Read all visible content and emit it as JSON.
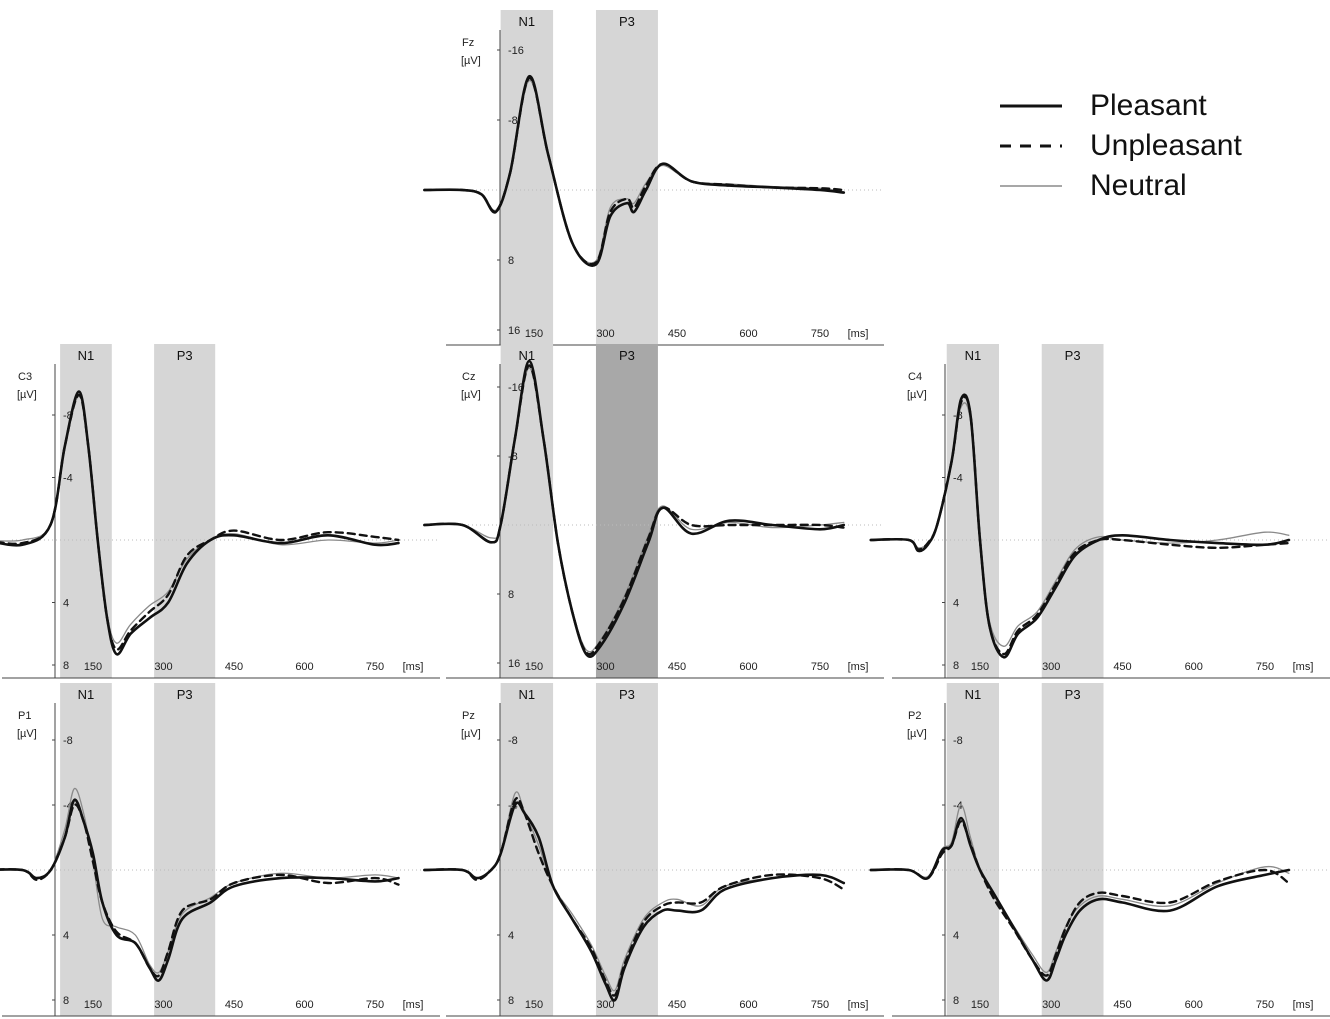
{
  "legend": {
    "items": [
      {
        "label": "Pleasant",
        "style": "solid-thick"
      },
      {
        "label": "Unpleasant",
        "style": "dashed"
      },
      {
        "label": "Neutral",
        "style": "solid-thin"
      }
    ]
  },
  "colors": {
    "pleasant": "#111111",
    "unpleasant": "#111111",
    "neutral": "#8a8a8a",
    "window": "#d6d6d6",
    "window_dark": "#a8a8a8",
    "axis": "#444444"
  },
  "chart_data": [
    {
      "type": "line",
      "electrode": "Fz",
      "unit": "[µV]",
      "x_unit": "[ms]",
      "x_ticks": [
        150,
        300,
        450,
        600,
        750
      ],
      "y_ticks": [
        -16,
        -8,
        8,
        16
      ],
      "y_inverted": true,
      "windows": [
        "N1",
        "P3"
      ],
      "p3_dark": false,
      "series": [
        {
          "name": "Pleasant",
          "x": [
            -80,
            0,
            40,
            70,
            100,
            140,
            180,
            230,
            280,
            310,
            345,
            360,
            385,
            420,
            480,
            560,
            650,
            750,
            800
          ],
          "y": [
            0,
            0,
            0.5,
            2.5,
            -2,
            -13,
            -4,
            6,
            8.5,
            3,
            1.5,
            2.5,
            0,
            -3,
            -1,
            -0.5,
            -0.3,
            0,
            0.3
          ]
        },
        {
          "name": "Unpleasant",
          "x": [
            -80,
            0,
            40,
            70,
            100,
            140,
            180,
            230,
            280,
            310,
            345,
            360,
            385,
            420,
            480,
            560,
            650,
            750,
            800
          ],
          "y": [
            0,
            0,
            0.5,
            2.4,
            -2,
            -12.8,
            -4,
            6,
            8.3,
            2.5,
            1,
            2,
            -0.5,
            -3,
            -1,
            -0.6,
            -0.3,
            -0.2,
            0
          ]
        },
        {
          "name": "Neutral",
          "x": [
            -80,
            0,
            40,
            70,
            100,
            140,
            180,
            230,
            280,
            310,
            345,
            360,
            385,
            420,
            480,
            560,
            650,
            750,
            800
          ],
          "y": [
            0,
            0,
            0.4,
            2.3,
            -2,
            -12.5,
            -4,
            6,
            8.1,
            2,
            1,
            1.5,
            -0.8,
            -2.8,
            -1,
            -0.7,
            -0.4,
            -0.2,
            0.2
          ]
        }
      ]
    },
    {
      "type": "line",
      "electrode": "C3",
      "unit": "[µV]",
      "x_unit": "[ms]",
      "x_ticks": [
        150,
        300,
        450,
        600,
        750
      ],
      "y_ticks": [
        -8,
        -4,
        4,
        8
      ],
      "y_inverted": true,
      "windows": [
        "N1",
        "P3"
      ],
      "p3_dark": false,
      "series": [
        {
          "name": "Pleasant",
          "x": [
            -80,
            0,
            60,
            90,
            120,
            140,
            160,
            180,
            200,
            230,
            270,
            310,
            350,
            400,
            450,
            550,
            650,
            750,
            800
          ],
          "y": [
            0,
            0.3,
            -1,
            -6,
            -9.5,
            -6,
            0,
            5,
            7.3,
            6,
            5,
            4,
            1.5,
            0,
            -0.3,
            0.2,
            -0.3,
            0.3,
            0.2
          ]
        },
        {
          "name": "Unpleasant",
          "x": [
            -80,
            0,
            60,
            90,
            120,
            140,
            160,
            180,
            200,
            230,
            270,
            310,
            350,
            400,
            450,
            550,
            650,
            750,
            800
          ],
          "y": [
            0,
            0.2,
            -1,
            -6,
            -9.3,
            -6,
            0,
            5,
            7,
            5.8,
            4.6,
            3.5,
            1,
            0,
            -0.6,
            0,
            -0.5,
            -0.2,
            0
          ]
        },
        {
          "name": "Neutral",
          "x": [
            -80,
            0,
            60,
            90,
            120,
            140,
            160,
            180,
            200,
            230,
            270,
            310,
            350,
            400,
            450,
            550,
            650,
            750,
            800
          ],
          "y": [
            0,
            0,
            -1,
            -6,
            -9.2,
            -6,
            0,
            4.8,
            6.6,
            5.4,
            4.2,
            3.3,
            1.2,
            0,
            -0.4,
            0.3,
            0,
            0.2,
            0
          ]
        }
      ]
    },
    {
      "type": "line",
      "electrode": "Cz",
      "unit": "[µV]",
      "x_unit": "[ms]",
      "x_ticks": [
        150,
        300,
        450,
        600,
        750
      ],
      "y_ticks": [
        -16,
        -8,
        8,
        16
      ],
      "y_inverted": true,
      "windows": [
        "N1",
        "P3"
      ],
      "p3_dark": true,
      "series": [
        {
          "name": "Pleasant",
          "x": [
            -80,
            0,
            60,
            80,
            110,
            140,
            170,
            200,
            230,
            260,
            290,
            340,
            390,
            420,
            480,
            560,
            650,
            750,
            800
          ],
          "y": [
            0,
            0,
            2,
            0,
            -10,
            -19,
            -10,
            2,
            10,
            15,
            14,
            9,
            2,
            -2,
            1,
            -0.5,
            0,
            0.5,
            0
          ]
        },
        {
          "name": "Unpleasant",
          "x": [
            -80,
            0,
            60,
            80,
            110,
            140,
            170,
            200,
            230,
            260,
            290,
            340,
            390,
            420,
            480,
            560,
            650,
            750,
            800
          ],
          "y": [
            0,
            0,
            2,
            0,
            -10,
            -18.5,
            -10,
            2,
            10,
            14.8,
            13.5,
            8.5,
            1.5,
            -2,
            0,
            0,
            0,
            0,
            0.3
          ]
        },
        {
          "name": "Neutral",
          "x": [
            -80,
            0,
            60,
            80,
            110,
            140,
            170,
            200,
            230,
            260,
            290,
            340,
            390,
            420,
            480,
            560,
            650,
            750,
            800
          ],
          "y": [
            0,
            0,
            1.5,
            0,
            -10,
            -18.2,
            -10,
            2,
            9.8,
            14.5,
            13.3,
            8.2,
            1.2,
            -2.2,
            0.5,
            -0.3,
            0.3,
            0,
            -0.3
          ]
        }
      ]
    },
    {
      "type": "line",
      "electrode": "C4",
      "unit": "[µV]",
      "x_unit": "[ms]",
      "x_ticks": [
        150,
        300,
        450,
        600,
        750
      ],
      "y_ticks": [
        -8,
        -4,
        4,
        8
      ],
      "y_inverted": true,
      "windows": [
        "N1",
        "P3"
      ],
      "p3_dark": false,
      "series": [
        {
          "name": "Pleasant",
          "x": [
            -80,
            0,
            20,
            40,
            60,
            90,
            110,
            130,
            150,
            170,
            200,
            230,
            270,
            310,
            350,
            400,
            450,
            550,
            650,
            750,
            800
          ],
          "y": [
            0,
            0,
            0.7,
            0.3,
            -1,
            -5,
            -9,
            -8,
            0,
            5.5,
            7.5,
            6,
            5,
            3,
            1,
            0,
            -0.3,
            0,
            0.2,
            0.3,
            0
          ]
        },
        {
          "name": "Unpleasant",
          "x": [
            -80,
            0,
            20,
            40,
            60,
            90,
            110,
            130,
            150,
            170,
            200,
            230,
            270,
            310,
            350,
            400,
            450,
            550,
            650,
            750,
            800
          ],
          "y": [
            0,
            0,
            0.6,
            0.2,
            -1,
            -5,
            -8.8,
            -8,
            0,
            5.5,
            7.3,
            5.8,
            4.8,
            2.8,
            0.8,
            0,
            0,
            0.3,
            0.5,
            0.3,
            0.2
          ]
        },
        {
          "name": "Neutral",
          "x": [
            -80,
            0,
            20,
            40,
            60,
            90,
            110,
            130,
            150,
            170,
            200,
            230,
            270,
            310,
            350,
            400,
            450,
            550,
            650,
            750,
            800
          ],
          "y": [
            0,
            0,
            0.5,
            0.2,
            -1,
            -5,
            -8.5,
            -7.6,
            0,
            5.2,
            6.8,
            5.5,
            4.6,
            2.6,
            0.6,
            -0.2,
            0,
            0.2,
            0,
            -0.5,
            -0.3
          ]
        }
      ]
    },
    {
      "type": "line",
      "electrode": "P1",
      "unit": "[µV]",
      "x_unit": "[ms]",
      "x_ticks": [
        150,
        300,
        450,
        600,
        750
      ],
      "y_ticks": [
        -8,
        -4,
        4,
        8
      ],
      "y_inverted": true,
      "windows": [
        "N1",
        "P3"
      ],
      "p3_dark": false,
      "series": [
        {
          "name": "Pleasant",
          "x": [
            -80,
            0,
            30,
            60,
            90,
            110,
            130,
            150,
            170,
            200,
            240,
            270,
            290,
            310,
            340,
            400,
            450,
            550,
            650,
            750,
            800
          ],
          "y": [
            0,
            0,
            0.5,
            0,
            -2,
            -4.3,
            -3,
            -1,
            2,
            4,
            4.5,
            6,
            6.8,
            5.5,
            3,
            2,
            1,
            0.5,
            0.5,
            0.7,
            0.5
          ]
        },
        {
          "name": "Unpleasant",
          "x": [
            -80,
            0,
            30,
            60,
            90,
            110,
            130,
            150,
            170,
            200,
            240,
            270,
            290,
            310,
            340,
            400,
            450,
            550,
            650,
            750,
            800
          ],
          "y": [
            0,
            0,
            0.6,
            0,
            -2,
            -4,
            -3,
            -0.5,
            2,
            3.8,
            4.5,
            6,
            6.5,
            5,
            2.5,
            1.8,
            0.8,
            0.3,
            0.8,
            0.5,
            0.9
          ]
        },
        {
          "name": "Neutral",
          "x": [
            -80,
            0,
            30,
            60,
            90,
            110,
            130,
            150,
            170,
            200,
            240,
            270,
            290,
            310,
            340,
            400,
            450,
            550,
            650,
            750,
            800
          ],
          "y": [
            0,
            0,
            0.5,
            0,
            -2.5,
            -5,
            -3.5,
            -0.5,
            3,
            3.5,
            4,
            5.8,
            6.3,
            5,
            2.7,
            1.7,
            0.8,
            0.2,
            0.5,
            0.3,
            0.5
          ]
        }
      ]
    },
    {
      "type": "line",
      "electrode": "Pz",
      "unit": "[µV]",
      "x_unit": "[ms]",
      "x_ticks": [
        150,
        300,
        450,
        600,
        750
      ],
      "y_ticks": [
        -8,
        -4,
        4,
        8
      ],
      "y_inverted": true,
      "windows": [
        "N1",
        "P3"
      ],
      "p3_dark": false,
      "series": [
        {
          "name": "Pleasant",
          "x": [
            -80,
            0,
            30,
            60,
            80,
            110,
            130,
            160,
            190,
            230,
            270,
            300,
            320,
            340,
            380,
            420,
            450,
            500,
            550,
            650,
            750,
            800
          ],
          "y": [
            0,
            0,
            0.5,
            0,
            -1,
            -4,
            -3.5,
            -2,
            1,
            3,
            5,
            7,
            8,
            6,
            3.5,
            2.5,
            2.5,
            2.5,
            1.2,
            0.5,
            0.3,
            0.8
          ]
        },
        {
          "name": "Unpleasant",
          "x": [
            -80,
            0,
            30,
            60,
            80,
            110,
            130,
            160,
            190,
            230,
            270,
            300,
            320,
            340,
            380,
            420,
            450,
            500,
            550,
            650,
            750,
            800
          ],
          "y": [
            0,
            0,
            0.6,
            0,
            -1,
            -4.3,
            -3.5,
            -1,
            1,
            3,
            4.8,
            6.8,
            7.7,
            5.8,
            3.2,
            2.2,
            2,
            2,
            1,
            0.3,
            0.5,
            1.2
          ]
        },
        {
          "name": "Neutral",
          "x": [
            -80,
            0,
            30,
            60,
            80,
            110,
            130,
            160,
            190,
            230,
            270,
            300,
            320,
            340,
            380,
            420,
            450,
            500,
            550,
            650,
            750,
            800
          ],
          "y": [
            0,
            0,
            0.5,
            0,
            -1,
            -4.7,
            -3.6,
            -1.5,
            1,
            2.7,
            4.6,
            6.5,
            7.4,
            5.5,
            3,
            2,
            1.8,
            2.2,
            1,
            0.5,
            0.3,
            0.8
          ]
        }
      ]
    },
    {
      "type": "line",
      "electrode": "P2",
      "unit": "[µV]",
      "x_unit": "[ms]",
      "x_ticks": [
        150,
        300,
        450,
        600,
        750
      ],
      "y_ticks": [
        -8,
        -4,
        4,
        8
      ],
      "y_inverted": true,
      "windows": [
        "N1",
        "P3"
      ],
      "p3_dark": false,
      "series": [
        {
          "name": "Pleasant",
          "x": [
            -80,
            0,
            40,
            70,
            90,
            110,
            130,
            150,
            180,
            220,
            260,
            290,
            310,
            330,
            360,
            400,
            450,
            550,
            650,
            750,
            800
          ],
          "y": [
            0,
            0,
            0.5,
            -1.2,
            -1.5,
            -3.2,
            -1.5,
            0,
            1.5,
            3.5,
            5.5,
            6.8,
            5.5,
            4,
            2.5,
            1.8,
            2,
            2.5,
            1,
            0.3,
            0
          ]
        },
        {
          "name": "Unpleasant",
          "x": [
            -80,
            0,
            40,
            70,
            90,
            110,
            130,
            150,
            180,
            220,
            260,
            290,
            310,
            330,
            360,
            400,
            450,
            550,
            650,
            750,
            800
          ],
          "y": [
            0,
            0,
            0.5,
            -1,
            -1.5,
            -3,
            -1.6,
            0,
            1.8,
            3.6,
            5.5,
            6.5,
            5.2,
            3.6,
            2,
            1.4,
            1.6,
            2,
            0.7,
            0,
            0.8
          ]
        },
        {
          "name": "Neutral",
          "x": [
            -80,
            0,
            40,
            70,
            90,
            110,
            130,
            150,
            180,
            220,
            260,
            290,
            310,
            330,
            360,
            400,
            450,
            550,
            650,
            750,
            800
          ],
          "y": [
            0,
            0,
            0.4,
            -1.3,
            -1.7,
            -4,
            -2,
            0,
            1.6,
            3.4,
            5.2,
            6.3,
            5,
            3.5,
            2.2,
            1.6,
            1.8,
            2.2,
            0.8,
            -0.2,
            0.2
          ]
        }
      ]
    }
  ]
}
